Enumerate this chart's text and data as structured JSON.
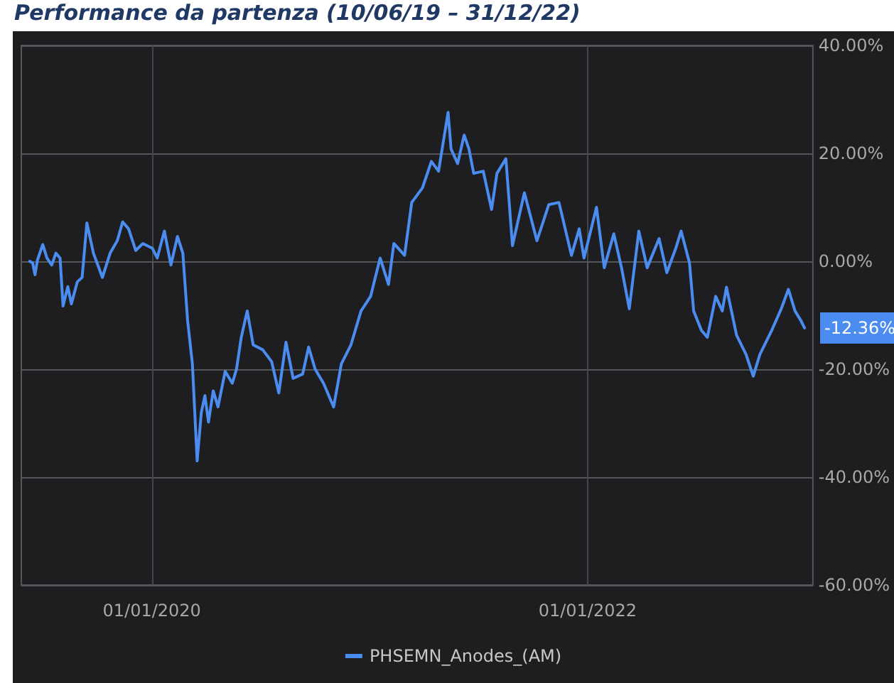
{
  "chart_data": {
    "type": "line",
    "title": "Performance da partenza (10/06/19 – 31/12/22)",
    "x": [
      "2019-06-10",
      "2019-06-15",
      "2019-06-19",
      "2019-06-23",
      "2019-07-02",
      "2019-07-09",
      "2019-07-17",
      "2019-07-24",
      "2019-07-31",
      "2019-08-05",
      "2019-08-13",
      "2019-08-19",
      "2019-08-29",
      "2019-09-06",
      "2019-09-14",
      "2019-09-25",
      "2019-10-10",
      "2019-10-23",
      "2019-11-04",
      "2019-11-13",
      "2019-11-23",
      "2019-12-05",
      "2019-12-17",
      "2020-01-02",
      "2020-01-10",
      "2020-01-22",
      "2020-02-02",
      "2020-02-13",
      "2020-02-22",
      "2020-03-01",
      "2020-03-09",
      "2020-03-17",
      "2020-03-24",
      "2020-03-30",
      "2020-04-05",
      "2020-04-13",
      "2020-04-21",
      "2020-05-03",
      "2020-05-15",
      "2020-05-22",
      "2020-05-30",
      "2020-06-09",
      "2020-06-19",
      "2020-07-05",
      "2020-07-20",
      "2020-08-01",
      "2020-08-13",
      "2020-08-25",
      "2020-09-10",
      "2020-09-20",
      "2020-10-01",
      "2020-10-15",
      "2020-11-01",
      "2020-11-14",
      "2020-11-30",
      "2020-12-17",
      "2021-01-02",
      "2021-01-18",
      "2021-02-01",
      "2021-02-10",
      "2021-02-28",
      "2021-03-12",
      "2021-03-30",
      "2021-04-14",
      "2021-04-26",
      "2021-05-12",
      "2021-05-17",
      "2021-05-28",
      "2021-06-08",
      "2021-06-16",
      "2021-06-24",
      "2021-07-10",
      "2021-07-24",
      "2021-08-02",
      "2021-08-17",
      "2021-08-28",
      "2021-09-17",
      "2021-10-08",
      "2021-10-28",
      "2021-11-14",
      "2021-12-05",
      "2021-12-18",
      "2021-12-26",
      "2022-01-16",
      "2022-01-29",
      "2022-02-14",
      "2022-02-27",
      "2022-03-12",
      "2022-03-28",
      "2022-04-11",
      "2022-05-01",
      "2022-05-14",
      "2022-05-29",
      "2022-06-07",
      "2022-06-21",
      "2022-06-28",
      "2022-07-11",
      "2022-07-21",
      "2022-08-04",
      "2022-08-15",
      "2022-08-22",
      "2022-09-08",
      "2022-09-24",
      "2022-10-06",
      "2022-10-17",
      "2022-11-06",
      "2022-11-22",
      "2022-12-04",
      "2022-12-15",
      "2022-12-25",
      "2022-12-31"
    ],
    "series": [
      {
        "name": "PHSEMN_Anodes_(AM)",
        "color": "#4a8cf0",
        "values": [
          0,
          -0.3,
          -2.5,
          0.2,
          3.1,
          0.6,
          -0.7,
          1.5,
          0.6,
          -8.3,
          -4.7,
          -7.9,
          -3.8,
          -3,
          7.1,
          1.5,
          -3,
          1.5,
          3.8,
          7.3,
          6,
          2,
          3.3,
          2.4,
          0.6,
          5.6,
          -0.7,
          4.6,
          1.5,
          -11,
          -19,
          -37,
          -28,
          -24.9,
          -29.8,
          -24,
          -27,
          -20.4,
          -22.6,
          -20,
          -14.1,
          -9.2,
          -15.5,
          -16.4,
          -18.6,
          -24.4,
          -15,
          -21.7,
          -20.9,
          -15.9,
          -20,
          -22.6,
          -27,
          -19,
          -15.5,
          -9.2,
          -6.5,
          0.6,
          -4.3,
          3.3,
          1.1,
          10.9,
          13.6,
          18.5,
          16.7,
          27.6,
          20.8,
          18.1,
          23.4,
          20.8,
          16.3,
          16.7,
          9.6,
          16.3,
          19,
          2.9,
          12.7,
          3.8,
          10.5,
          10.9,
          1.1,
          6,
          0.6,
          10,
          -1.2,
          5.1,
          -1.2,
          -8.8,
          5.6,
          -1.2,
          4.2,
          -2.1,
          2.4,
          5.6,
          -0.3,
          -9.2,
          -12.8,
          -14.1,
          -6.5,
          -9.2,
          -4.8,
          -13.7,
          -17.3,
          -21.3,
          -17.3,
          -12.8,
          -8.8,
          -5.2,
          -9.2,
          -11,
          -12.36
        ]
      }
    ],
    "xlim": [
      "2019-05-27",
      "2023-01-14"
    ],
    "xticks": [
      {
        "value": "2020-01-01",
        "label": "01/01/2020"
      },
      {
        "value": "2022-01-01",
        "label": "01/01/2022"
      }
    ],
    "ylim": [
      -60,
      40
    ],
    "yticks": [
      {
        "value": -60,
        "label": "-60.00%"
      },
      {
        "value": -40,
        "label": "-40.00%"
      },
      {
        "value": -20,
        "label": "-20.00%"
      },
      {
        "value": 0,
        "label": "0.00%"
      },
      {
        "value": 20,
        "label": "20.00%"
      },
      {
        "value": 40,
        "label": "40.00%"
      }
    ],
    "annotations": [
      {
        "text": "-12.36%",
        "x": "2022-12-31",
        "y": -12.36
      }
    ],
    "grid": true,
    "legend": "bottom",
    "marker": "none",
    "line_style": "solid"
  }
}
